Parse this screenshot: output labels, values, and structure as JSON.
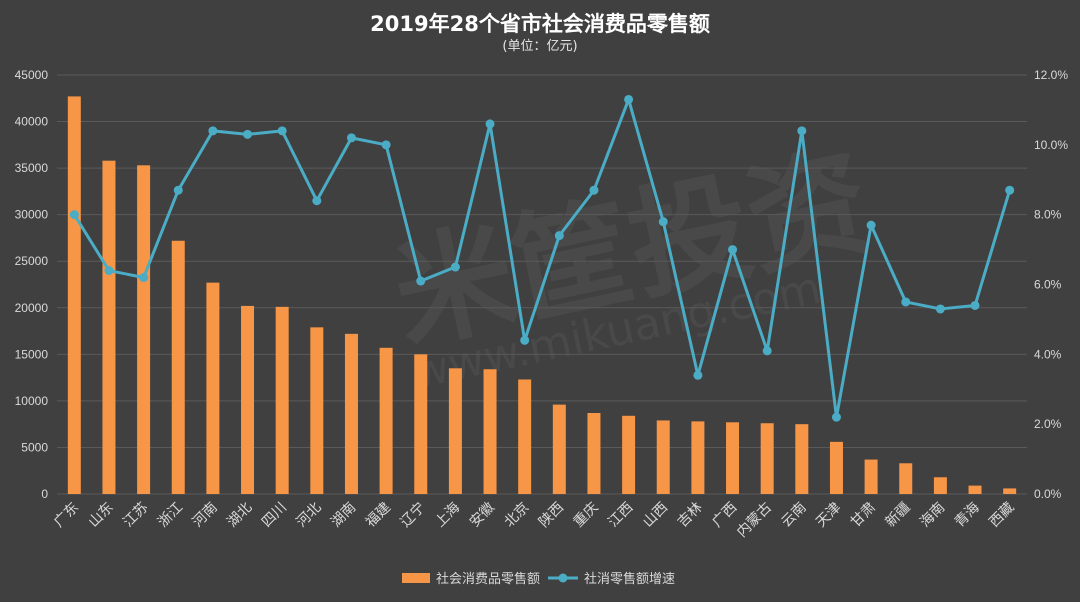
{
  "chart_data": {
    "type": "bar+line",
    "title": "2019年28个省市社会消费品零售额",
    "subtitle": "(单位：亿元)",
    "categories": [
      "广东",
      "山东",
      "江苏",
      "浙江",
      "河南",
      "湖北",
      "四川",
      "河北",
      "湖南",
      "福建",
      "辽宁",
      "上海",
      "安徽",
      "北京",
      "陕西",
      "重庆",
      "江西",
      "山西",
      "吉林",
      "广西",
      "内蒙古",
      "云南",
      "天津",
      "甘肃",
      "新疆",
      "海南",
      "青海",
      "西藏"
    ],
    "series": [
      {
        "name": "社会消费品零售额",
        "type": "bar",
        "axis": "left",
        "values": [
          42700,
          35800,
          35300,
          27200,
          22700,
          20200,
          20100,
          17900,
          17200,
          15700,
          15000,
          13500,
          13400,
          12300,
          9600,
          8700,
          8400,
          7900,
          7800,
          7700,
          7600,
          7500,
          5600,
          3700,
          3300,
          1800,
          900,
          600
        ]
      },
      {
        "name": "社消零售额增速",
        "type": "line",
        "axis": "right",
        "values": [
          8.0,
          6.4,
          6.2,
          8.7,
          10.4,
          10.3,
          10.4,
          8.4,
          10.2,
          10.0,
          6.1,
          6.5,
          10.6,
          4.4,
          7.4,
          8.7,
          11.3,
          7.8,
          3.4,
          7.0,
          4.1,
          10.4,
          2.2,
          7.7,
          5.5,
          5.3,
          5.4,
          8.7
        ]
      }
    ],
    "y_left": {
      "min": 0,
      "max": 45000,
      "step": 5000,
      "ticks": [
        "0",
        "5000",
        "10000",
        "15000",
        "20000",
        "25000",
        "30000",
        "35000",
        "40000",
        "45000"
      ]
    },
    "y_right": {
      "min": 0,
      "max": 12,
      "step": 2,
      "ticks": [
        "0.0%",
        "2.0%",
        "4.0%",
        "6.0%",
        "8.0%",
        "10.0%",
        "12.0%"
      ]
    },
    "grid": true,
    "legend_position": "bottom",
    "colors": {
      "bar": "#f79646",
      "line": "#4bacc6",
      "background": "#404040",
      "grid": "#5a5a5a",
      "text": "#d9d9d9"
    }
  },
  "watermark": {
    "text": "米筐投资",
    "url": "www.mikuang.com"
  }
}
